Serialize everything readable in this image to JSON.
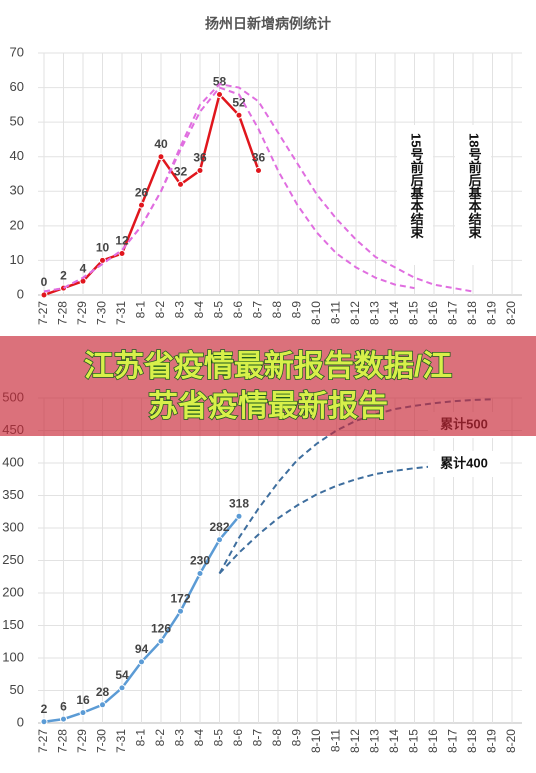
{
  "chart_data": [
    {
      "type": "line",
      "title": "扬州日新增病例统计",
      "categories": [
        "7-27",
        "7-28",
        "7-29",
        "7-30",
        "7-31",
        "8-1",
        "8-2",
        "8-3",
        "8-4",
        "8-5",
        "8-6",
        "8-7",
        "8-8",
        "8-9",
        "8-10",
        "8-11",
        "8-12",
        "8-13",
        "8-14",
        "8-15",
        "8-16",
        "8-17",
        "8-18",
        "8-19",
        "8-20"
      ],
      "ylim": [
        0,
        70
      ],
      "yticks": [
        0,
        10,
        20,
        30,
        40,
        50,
        60,
        70
      ],
      "grid": true,
      "series": [
        {
          "color": "#e0161d",
          "data_labels": true,
          "values": [
            0,
            2,
            4,
            10,
            12,
            26,
            40,
            32,
            36,
            58,
            52,
            36,
            null,
            null,
            null,
            null,
            null,
            null,
            null,
            null,
            null,
            null,
            null,
            null,
            null
          ]
        },
        {
          "name": "15号前后基本结束",
          "color": "#e06ee0",
          "dashed": true,
          "values": [
            1,
            2,
            5,
            9,
            13,
            20,
            30,
            42,
            53,
            60,
            58,
            48,
            36,
            26,
            18,
            12,
            8,
            5,
            3,
            2,
            null,
            null,
            null,
            null,
            null
          ]
        },
        {
          "name": "18号前后基本结束",
          "color": "#e06ee0",
          "dashed": true,
          "values": [
            1,
            2,
            5,
            9,
            13,
            20,
            30,
            43,
            55,
            61,
            60,
            56,
            47,
            38,
            29,
            22,
            16,
            11,
            8,
            5,
            3,
            2,
            1,
            null,
            null
          ]
        }
      ]
    },
    {
      "type": "line",
      "categories": [
        "7-27",
        "7-28",
        "7-29",
        "7-30",
        "7-31",
        "8-1",
        "8-2",
        "8-3",
        "8-4",
        "8-5",
        "8-6",
        "8-7",
        "8-8",
        "8-9",
        "8-10",
        "8-11",
        "8-12",
        "8-13",
        "8-14",
        "8-15",
        "8-16",
        "8-17",
        "8-18",
        "8-19",
        "8-20"
      ],
      "ylim": [
        0,
        500
      ],
      "yticks": [
        0,
        50,
        100,
        150,
        200,
        250,
        300,
        350,
        400,
        450,
        500
      ],
      "grid": true,
      "series": [
        {
          "color": "#5b9bd5",
          "data_labels": true,
          "values": [
            2,
            6,
            16,
            28,
            54,
            94,
            126,
            172,
            230,
            282,
            318,
            null,
            null,
            null,
            null,
            null,
            null,
            null,
            null,
            null,
            null,
            null,
            null,
            null,
            null
          ]
        },
        {
          "name": "累计500",
          "color": "#3e6e9e",
          "dashed": true,
          "values": [
            null,
            null,
            null,
            null,
            null,
            null,
            null,
            null,
            null,
            230,
            285,
            330,
            370,
            405,
            430,
            450,
            465,
            475,
            483,
            488,
            492,
            495,
            497,
            498,
            null
          ]
        },
        {
          "name": "累计400",
          "color": "#3e6e9e",
          "dashed": true,
          "values": [
            null,
            null,
            null,
            null,
            null,
            null,
            null,
            null,
            null,
            230,
            262,
            290,
            315,
            335,
            352,
            365,
            375,
            383,
            388,
            392,
            395,
            null,
            null,
            null,
            null
          ]
        }
      ]
    }
  ],
  "banner": {
    "lines": [
      "江苏省疫情最新报告数据/江",
      "苏省疫情最新报告"
    ]
  }
}
